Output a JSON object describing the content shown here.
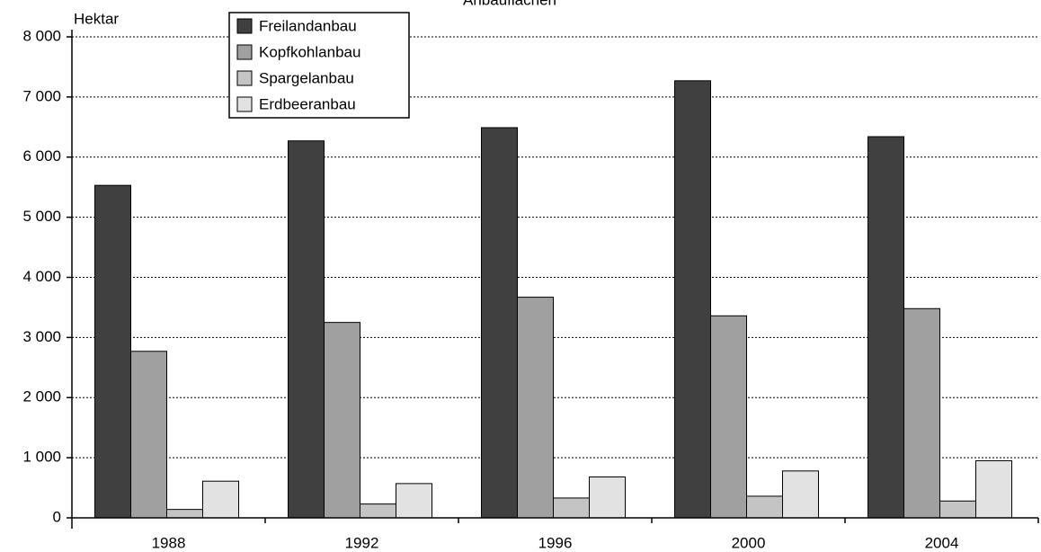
{
  "chart_data": {
    "type": "bar",
    "title": "Anbauflächen",
    "y_axis_label": "Hektar",
    "categories": [
      "1988",
      "1992",
      "1996",
      "2000",
      "2004"
    ],
    "series": [
      {
        "name": "Freilandanbau",
        "color": "#404040",
        "values": [
          5530,
          6270,
          6490,
          7270,
          6340
        ]
      },
      {
        "name": "Kopfkohlanbau",
        "color": "#a0a0a0",
        "values": [
          2770,
          3250,
          3670,
          3360,
          3480
        ]
      },
      {
        "name": "Spargelanbau",
        "color": "#c4c4c4",
        "values": [
          140,
          230,
          330,
          360,
          280
        ]
      },
      {
        "name": "Erdbeeranbau",
        "color": "#e2e2e2",
        "values": [
          610,
          570,
          680,
          780,
          950
        ]
      }
    ],
    "ylim": [
      0,
      8000
    ],
    "yticks": [
      0,
      {
        "value": 1000,
        "label": "1 000"
      },
      {
        "value": 2000,
        "label": "2 000"
      },
      {
        "value": 3000,
        "label": "3 000"
      },
      {
        "value": 4000,
        "label": "4 000"
      },
      {
        "value": 5000,
        "label": "5 000"
      },
      {
        "value": 6000,
        "label": "6 000"
      },
      {
        "value": 7000,
        "label": "7 000"
      },
      {
        "value": 8000,
        "label": "8 000"
      }
    ],
    "grid": true,
    "legend": "top-left"
  }
}
